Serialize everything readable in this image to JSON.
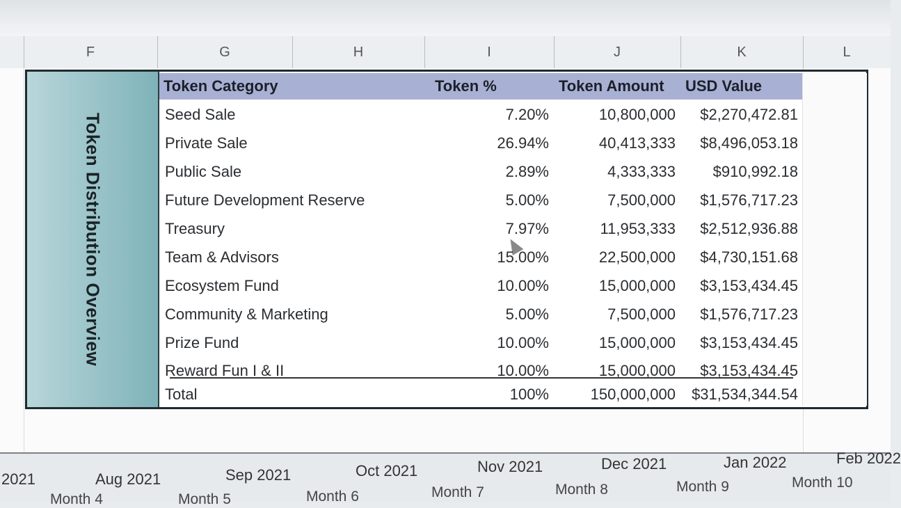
{
  "columns": [
    "F",
    "G",
    "H",
    "I",
    "J",
    "K",
    "L"
  ],
  "title": "Token Distribution Overview",
  "table": {
    "headers": {
      "category": "Token Category",
      "percent": "Token %",
      "amount": "Token Amount",
      "usd": "USD Value"
    },
    "rows": [
      {
        "category": "Seed Sale",
        "percent": "7.20%",
        "amount": "10,800,000",
        "usd": "$2,270,472.81"
      },
      {
        "category": "Private Sale",
        "percent": "26.94%",
        "amount": "40,413,333",
        "usd": "$8,496,053.18"
      },
      {
        "category": "Public Sale",
        "percent": "2.89%",
        "amount": "4,333,333",
        "usd": "$910,992.18"
      },
      {
        "category": "Future Development Reserve",
        "percent": "5.00%",
        "amount": "7,500,000",
        "usd": "$1,576,717.23"
      },
      {
        "category": "Treasury",
        "percent": "7.97%",
        "amount": "11,953,333",
        "usd": "$2,512,936.88"
      },
      {
        "category": "Team & Advisors",
        "percent": "15.00%",
        "amount": "22,500,000",
        "usd": "$4,730,151.68"
      },
      {
        "category": "Ecosystem Fund",
        "percent": "10.00%",
        "amount": "15,000,000",
        "usd": "$3,153,434.45"
      },
      {
        "category": "Community & Marketing",
        "percent": "5.00%",
        "amount": "7,500,000",
        "usd": "$1,576,717.23"
      },
      {
        "category": "Prize Fund",
        "percent": "10.00%",
        "amount": "15,000,000",
        "usd": "$3,153,434.45"
      },
      {
        "category": "Reward Fun I & II",
        "percent": "10.00%",
        "amount": "15,000,000",
        "usd": "$3,153,434.45"
      }
    ],
    "total": {
      "category": "Total",
      "percent": "100%",
      "amount": "150,000,000",
      "usd": "$31,534,344.54"
    }
  },
  "timeline": {
    "months": [
      "2021",
      "Aug 2021",
      "Sep 2021",
      "Oct 2021",
      "Nov 2021",
      "Dec 2021",
      "Jan 2022",
      "Feb 2022"
    ],
    "month_numbers": [
      "Month 4",
      "Month 5",
      "Month 6",
      "Month 7",
      "Month 8",
      "Month 9",
      "Month 10"
    ]
  },
  "colors": {
    "header_bg": "#a8b1d3",
    "title_bg": "#7fb3b9",
    "frame": "#1f2a2f"
  }
}
